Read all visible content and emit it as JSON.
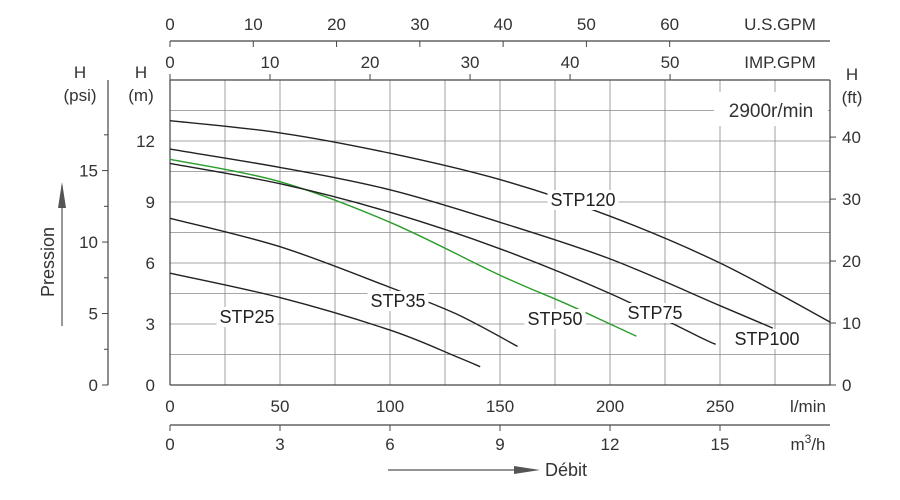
{
  "chart_data": {
    "type": "line",
    "annotation": "2900r/min",
    "axes": {
      "x_lpm": {
        "unit": "l/min",
        "ticks": [
          "0",
          "50",
          "100",
          "150",
          "200",
          "250"
        ],
        "range": [
          0,
          300
        ]
      },
      "x_m3h": {
        "unit": "m³/h",
        "unit_base": "m",
        "unit_sup": "3",
        "unit_tail": "/h",
        "ticks": [
          "0",
          "3",
          "6",
          "9",
          "12",
          "15"
        ]
      },
      "x_usgpm": {
        "unit": "U.S.GPM",
        "ticks": [
          "0",
          "10",
          "20",
          "30",
          "40",
          "50",
          "60"
        ]
      },
      "x_impgpm": {
        "unit": "IMP.GPM",
        "ticks": [
          "0",
          "10",
          "20",
          "30",
          "40",
          "50"
        ]
      },
      "y_m": {
        "unit_top": "H",
        "unit_bottom": "(m)",
        "ticks": [
          "0",
          "3",
          "6",
          "9",
          "12"
        ],
        "range": [
          0,
          15
        ]
      },
      "y_psi": {
        "unit_top": "H",
        "unit_bottom": "(psi)",
        "ticks": [
          "0",
          "5",
          "10",
          "15"
        ]
      },
      "y_ft": {
        "unit_top": "H",
        "unit_bottom": "(ft)",
        "ticks": [
          "0",
          "10",
          "20",
          "30",
          "40"
        ]
      },
      "y_title": "Pression",
      "x_title": "Débit"
    },
    "grid": true,
    "series": [
      {
        "name": "STP25",
        "color": "#222222",
        "x": [
          0,
          50,
          100,
          130,
          141
        ],
        "y": [
          5.5,
          4.3,
          2.7,
          1.4,
          0.9
        ]
      },
      {
        "name": "STP35",
        "color": "#222222",
        "x": [
          0,
          50,
          100,
          130,
          158
        ],
        "y": [
          8.2,
          6.8,
          4.8,
          3.5,
          1.9
        ]
      },
      {
        "name": "STP50",
        "color": "#2a9d2a",
        "x": [
          0,
          50,
          100,
          150,
          180,
          200,
          212
        ],
        "y": [
          11.1,
          10.0,
          8.0,
          5.4,
          4.0,
          3.0,
          2.4
        ]
      },
      {
        "name": "STP75",
        "color": "#222222",
        "x": [
          0,
          50,
          100,
          150,
          200,
          240,
          248
        ],
        "y": [
          10.9,
          9.9,
          8.5,
          6.7,
          4.5,
          2.4,
          2.0
        ]
      },
      {
        "name": "STP100",
        "color": "#222222",
        "x": [
          0,
          50,
          100,
          150,
          200,
          250,
          274
        ],
        "y": [
          11.6,
          10.7,
          9.6,
          8.0,
          6.2,
          3.9,
          2.8
        ]
      },
      {
        "name": "STP120",
        "color": "#222222",
        "x": [
          0,
          50,
          100,
          150,
          200,
          250,
          300
        ],
        "y": [
          13.0,
          12.4,
          11.4,
          10.1,
          8.3,
          6.0,
          3.1
        ]
      }
    ]
  }
}
